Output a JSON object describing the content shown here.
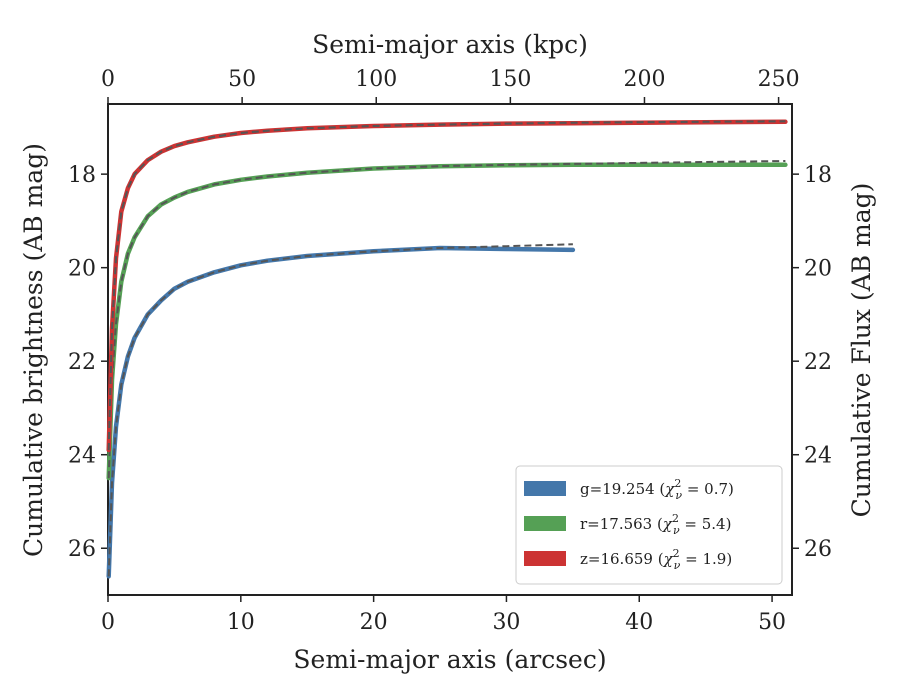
{
  "chart_data": {
    "type": "line",
    "xlabel_bottom": "Semi-major axis (arcsec)",
    "xlabel_top": "Semi-major axis (kpc)",
    "ylabel_left": "Cumulative brightness (AB mag)",
    "ylabel_right": "Cumulative Flux (AB mag)",
    "xlim": [
      0,
      51.5
    ],
    "ylim": [
      27.0,
      16.5
    ],
    "y_inverted": true,
    "top_xlim_kpc": [
      0,
      255
    ],
    "xticks": [
      "0",
      "10",
      "20",
      "30",
      "40",
      "50"
    ],
    "top_xticks": [
      "0",
      "50",
      "100",
      "150",
      "200",
      "250"
    ],
    "yticks": [
      "18",
      "20",
      "22",
      "24",
      "26"
    ],
    "grid": false,
    "legend_position": "lower-right",
    "series": [
      {
        "key": "g",
        "legend_main": "g=19.254 (",
        "legend_chi": "χ",
        "legend_sub": "ν",
        "legend_sup": "2",
        "legend_tail": " = 0.7)",
        "color": "#4477aa",
        "x_max": 35,
        "x": [
          0.05,
          0.3,
          0.6,
          1,
          1.5,
          2,
          3,
          4,
          5,
          6,
          8,
          10,
          12,
          15,
          20,
          25,
          30,
          35
        ],
        "y": [
          26.6,
          24.6,
          23.4,
          22.5,
          21.9,
          21.5,
          21.0,
          20.7,
          20.45,
          20.3,
          20.1,
          19.95,
          19.85,
          19.75,
          19.65,
          19.58,
          19.6,
          19.62
        ],
        "model_y": [
          26.6,
          24.6,
          23.4,
          22.5,
          21.9,
          21.5,
          21.0,
          20.7,
          20.45,
          20.3,
          20.1,
          19.95,
          19.85,
          19.75,
          19.65,
          19.58,
          19.54,
          19.5
        ]
      },
      {
        "key": "r",
        "legend_main": "r=17.563 (",
        "legend_chi": "χ",
        "legend_sub": "ν",
        "legend_sup": "2",
        "legend_tail": " = 5.4)",
        "color": "#55a055",
        "x_max": 51,
        "x": [
          0.05,
          0.3,
          0.6,
          1,
          1.5,
          2,
          3,
          4,
          5,
          6,
          8,
          10,
          12,
          15,
          20,
          25,
          30,
          35,
          40,
          45,
          51
        ],
        "y": [
          24.5,
          22.4,
          21.2,
          20.3,
          19.7,
          19.35,
          18.9,
          18.65,
          18.5,
          18.38,
          18.22,
          18.12,
          18.05,
          17.97,
          17.88,
          17.83,
          17.81,
          17.8,
          17.8,
          17.8,
          17.8
        ],
        "model_y": [
          24.5,
          22.4,
          21.2,
          20.3,
          19.7,
          19.35,
          18.9,
          18.65,
          18.5,
          18.38,
          18.22,
          18.12,
          18.05,
          17.97,
          17.88,
          17.83,
          17.8,
          17.78,
          17.76,
          17.74,
          17.72
        ]
      },
      {
        "key": "z",
        "legend_main": "z=16.659 (",
        "legend_chi": "χ",
        "legend_sub": "ν",
        "legend_sup": "2",
        "legend_tail": " = 1.9)",
        "color": "#cc3333",
        "x_max": 51,
        "x": [
          0.05,
          0.3,
          0.6,
          1,
          1.5,
          2,
          3,
          4,
          5,
          6,
          8,
          10,
          12,
          15,
          20,
          25,
          30,
          35,
          40,
          45,
          51
        ],
        "y": [
          23.9,
          21.3,
          19.8,
          18.8,
          18.3,
          18.0,
          17.7,
          17.52,
          17.4,
          17.32,
          17.2,
          17.12,
          17.07,
          17.02,
          16.97,
          16.94,
          16.92,
          16.91,
          16.9,
          16.89,
          16.88
        ],
        "model_y": [
          23.9,
          21.3,
          19.8,
          18.8,
          18.3,
          18.0,
          17.7,
          17.52,
          17.4,
          17.32,
          17.2,
          17.12,
          17.07,
          17.02,
          16.97,
          16.94,
          16.92,
          16.9,
          16.89,
          16.88,
          16.87
        ]
      }
    ],
    "model_line_color": "#555555"
  }
}
